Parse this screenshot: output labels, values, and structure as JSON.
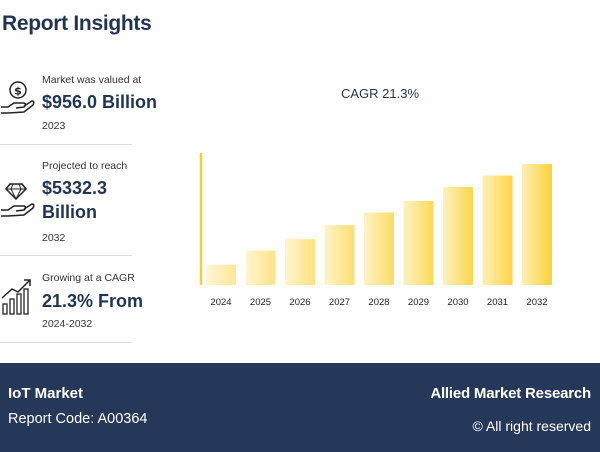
{
  "title": "Report Insights",
  "stats": [
    {
      "label": "Market was valued at",
      "value": "$956.0 Billion",
      "sub": "2023"
    },
    {
      "label": "Projected to reach",
      "value_line1": "$5332.3",
      "value_line2": "Billion",
      "sub": "2032"
    },
    {
      "label": "Growing at a CAGR",
      "value": "21.3% From",
      "sub": "2024-2032"
    }
  ],
  "colors": {
    "navy": "#263859",
    "heading": "#1f3553",
    "bar_start": "#fcefb5",
    "bar_end": "#fdd238",
    "axis": "#f5cf3a"
  },
  "chart_data": {
    "type": "bar",
    "title": "CAGR 21.3%",
    "categories": [
      "2024",
      "2025",
      "2026",
      "2027",
      "2028",
      "2029",
      "2030",
      "2031",
      "2032"
    ],
    "values": [
      1.6,
      2.7,
      3.6,
      4.7,
      5.7,
      6.6,
      7.7,
      8.6,
      9.5
    ],
    "ylim": [
      0,
      11
    ],
    "xlabel": "",
    "ylabel": "",
    "grid": false
  },
  "footer": {
    "market": "IoT Market",
    "report_code": "Report Code: A00364",
    "brand": "Allied Market Research",
    "rights": "© All right reserved"
  }
}
